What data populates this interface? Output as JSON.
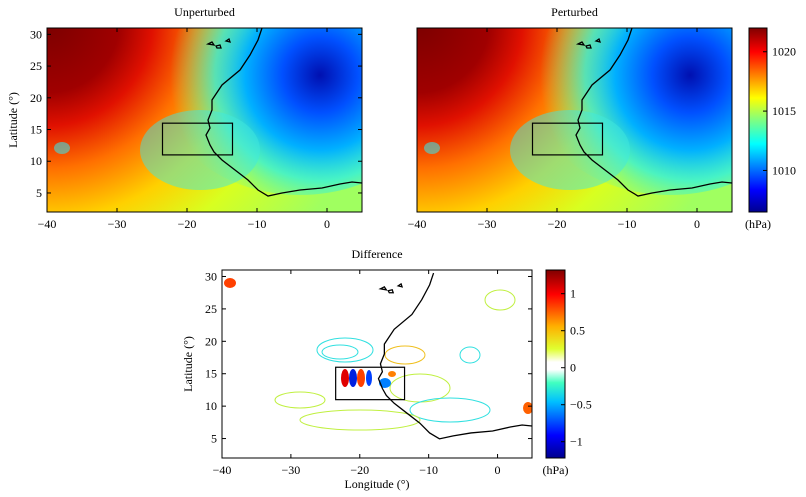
{
  "chart_data": [
    {
      "type": "heatmap",
      "title": "Unperturbed",
      "ylabel": "Latitude (°)",
      "xlim": [
        -40,
        5
      ],
      "ylim": [
        2,
        31
      ],
      "xticks": [
        {
          "value": -40,
          "label": "−40"
        },
        {
          "value": -30,
          "label": "−30"
        },
        {
          "value": -20,
          "label": "−20"
        },
        {
          "value": -10,
          "label": "−10"
        },
        0
      ],
      "yticks": [
        5,
        10,
        15,
        20,
        25,
        30
      ],
      "box_lon": [
        -23.5,
        -13.5
      ],
      "box_lat": [
        11,
        16
      ]
    },
    {
      "type": "heatmap",
      "title": "Perturbed",
      "xlim": [
        -40,
        5
      ],
      "ylim": [
        2,
        31
      ],
      "xticks": [
        {
          "value": -40,
          "label": "−40"
        },
        {
          "value": -30,
          "label": "−30"
        },
        {
          "value": -20,
          "label": "−20"
        },
        {
          "value": -10,
          "label": "−10"
        },
        0
      ],
      "box_lon": [
        -23.5,
        -13.5
      ],
      "box_lat": [
        11,
        16
      ],
      "colorbar": {
        "label": "(hPa)",
        "lim": [
          1006.5,
          1022
        ],
        "ticks": [
          1010,
          1015,
          1020
        ]
      }
    },
    {
      "type": "contour",
      "title": "Difference",
      "xlabel": "Longitude (°)",
      "ylabel": "Latitude (°)",
      "xlim": [
        -40,
        5
      ],
      "ylim": [
        2,
        31
      ],
      "xticks": [
        {
          "value": -40,
          "label": "−40"
        },
        {
          "value": -30,
          "label": "−30"
        },
        {
          "value": -20,
          "label": "−20"
        },
        {
          "value": -10,
          "label": "−10"
        },
        0
      ],
      "yticks": [
        5,
        10,
        15,
        20,
        25,
        30
      ],
      "box_lon": [
        -23.5,
        -13.5
      ],
      "box_lat": [
        11,
        16
      ],
      "colorbar": {
        "label": "(hPa)",
        "lim": [
          -1.22,
          1.32
        ],
        "ticks": [
          {
            "value": -1,
            "label": "−1"
          },
          {
            "value": -0.5,
            "label": "−0.5"
          },
          0,
          0.5,
          1
        ]
      }
    }
  ]
}
